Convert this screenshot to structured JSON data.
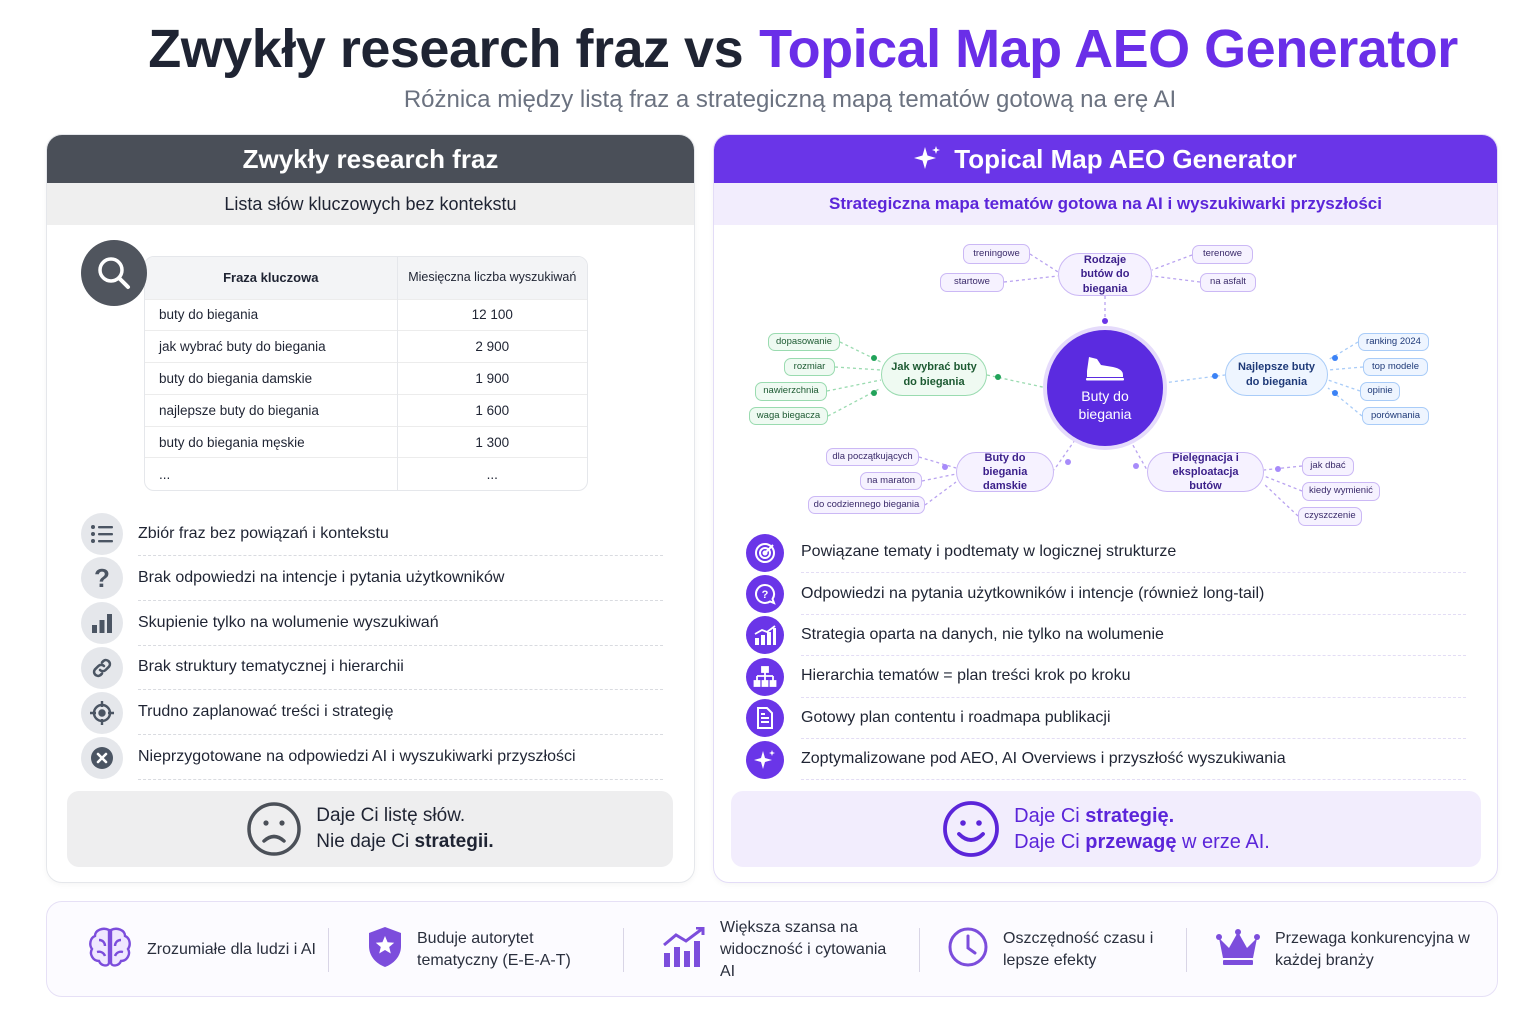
{
  "title": {
    "part1": "Zwykły research fraz vs",
    "part2": "Topical Map AEO Generator"
  },
  "subtitle": "Różnica między listą fraz a strategiczną mapą tematów gotową na erę AI",
  "colors": {
    "accent": "#6a35e8",
    "dark_header": "#4a4f58",
    "green": "#22a35a",
    "blue": "#3b82f6"
  },
  "left": {
    "header": "Zwykły research fraz",
    "subheader": "Lista słów kluczowych bez kontekstu",
    "table": {
      "headers": [
        "Fraza kluczowa",
        "Miesięczna liczba wyszukiwań"
      ],
      "rows": [
        [
          "buty do biegania",
          "12 100"
        ],
        [
          "jak wybrać buty do biegania",
          "2 900"
        ],
        [
          "buty do biegania damskie",
          "1 900"
        ],
        [
          "najlepsze buty do biegania",
          "1 600"
        ],
        [
          "buty do biegania męskie",
          "1 300"
        ],
        [
          "...",
          "..."
        ]
      ]
    },
    "items": [
      {
        "icon": "list-icon",
        "text": "Zbiór fraz bez powiązań i kontekstu"
      },
      {
        "icon": "question-icon",
        "text": "Brak odpowiedzi na intencje i pytania użytkowników"
      },
      {
        "icon": "bar-chart-icon",
        "text": "Skupienie tylko na wolumenie wyszukiwań"
      },
      {
        "icon": "link-icon",
        "text": "Brak struktury tematycznej i hierarchii"
      },
      {
        "icon": "crosshair-icon",
        "text": "Trudno zaplanować treści i strategię"
      },
      {
        "icon": "x-circle-icon",
        "text": "Nieprzygotowane na odpowiedzi AI i wyszukiwarki przyszłości"
      }
    ],
    "summary": {
      "line1": "Daje Ci listę słów.",
      "line2_pre": "Nie daje Ci ",
      "line2_bold": "strategii."
    }
  },
  "right": {
    "header": "Topical Map AEO Generator",
    "subheader": "Strategiczna mapa tematów gotowa na AI i wyszukiwarki przyszłości",
    "map": {
      "center": "Buty do biegania",
      "branches": [
        {
          "label": "Rodzaje butów do biegania",
          "children": [
            "treningowe",
            "startowe",
            "terenowe",
            "na asfalt"
          ]
        },
        {
          "label": "Jak wybrać buty do biegania",
          "children": [
            "dopasowanie",
            "rozmiar",
            "nawierzchnia",
            "waga biegacza"
          ]
        },
        {
          "label": "Najlepsze buty do biegania",
          "children": [
            "ranking 2024",
            "top modele",
            "opinie",
            "porównania"
          ]
        },
        {
          "label": "Buty do biegania damskie",
          "children": [
            "dla początkujących",
            "na maraton",
            "do codziennego biegania"
          ]
        },
        {
          "label": "Pielęgnacja i eksploatacja butów",
          "children": [
            "jak dbać",
            "kiedy wymienić",
            "czyszczenie"
          ]
        }
      ]
    },
    "items": [
      {
        "icon": "target-icon",
        "text": "Powiązane tematy i podtematy w logicznej strukturze"
      },
      {
        "icon": "question-bubble-icon",
        "text": "Odpowiedzi na pytania użytkowników i intencje (również long-tail)"
      },
      {
        "icon": "growth-chart-icon",
        "text": "Strategia oparta na danych, nie tylko na wolumenie"
      },
      {
        "icon": "hierarchy-icon",
        "text": "Hierarchia tematów = plan treści krok po kroku"
      },
      {
        "icon": "document-icon",
        "text": "Gotowy plan contentu i roadmapa publikacji"
      },
      {
        "icon": "sparkle-icon",
        "text": "Zoptymalizowane pod AEO, AI Overviews i przyszłość wyszukiwania"
      }
    ],
    "summary": {
      "l1_pre": "Daje Ci ",
      "l1_bold": "strategię.",
      "l2_pre": "Daje Ci ",
      "l2_bold": "przewagę",
      "l2_post": " w erze AI."
    }
  },
  "footer": [
    {
      "icon": "brain-icon",
      "text": "Zrozumiałe dla ludzi i AI"
    },
    {
      "icon": "shield-icon",
      "text": "Buduje autorytet tematyczny (E-E-A-T)"
    },
    {
      "icon": "growth-chart-icon",
      "text": "Większa szansa na widoczność i cytowania AI"
    },
    {
      "icon": "clock-icon",
      "text": "Oszczędność czasu i lepsze efekty"
    },
    {
      "icon": "crown-icon",
      "text": "Przewaga konkurencyjna w każdej branży"
    }
  ]
}
